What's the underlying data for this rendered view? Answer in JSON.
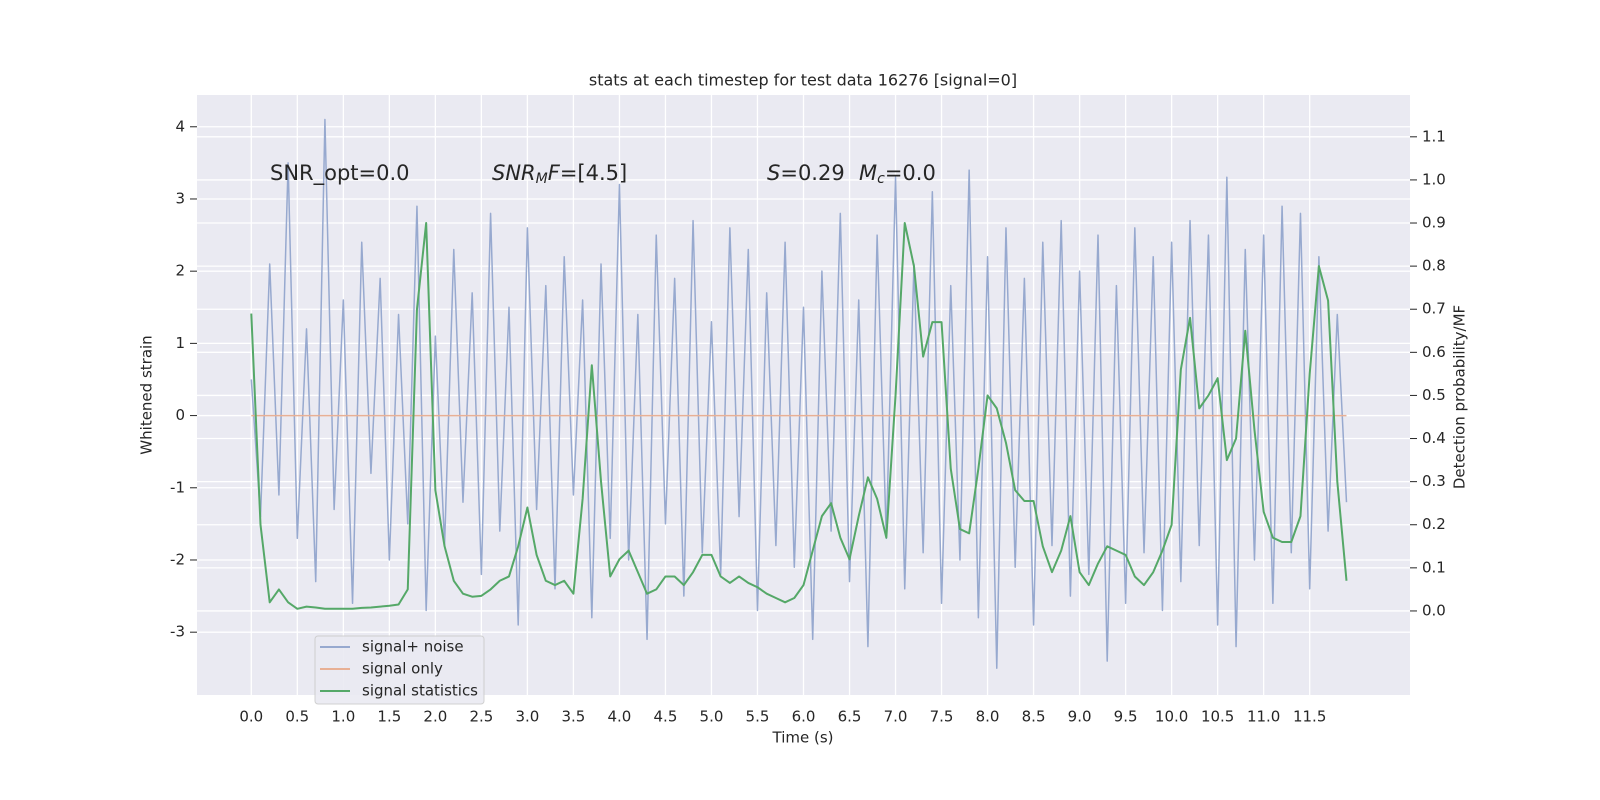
{
  "chart_data": {
    "type": "line",
    "title": "stats at each timestep for test data 16276 [signal=0]",
    "xlabel": "Time (s)",
    "ylabel": "Whitened strain",
    "y2label": "Detection probability/MF",
    "annotations": [
      [
        "SNR_opt=0.0"
      ],
      [
        "SNR",
        "M",
        "F",
        "=[4.5]"
      ],
      [
        "S",
        "=0.29"
      ],
      [
        "M",
        "c",
        "=0.0"
      ]
    ],
    "grid": true,
    "legend": "lower left",
    "xlim": [
      -0.59,
      12.59
    ],
    "ylim": [
      -3.87,
      4.44
    ],
    "y2lim": [
      -0.195,
      1.197
    ],
    "xticks": [
      {
        "value": 0,
        "label": "0.0"
      },
      0.5,
      {
        "value": 1,
        "label": "1.0"
      },
      1.5,
      {
        "value": 2,
        "label": "2.0"
      },
      2.5,
      {
        "value": 3,
        "label": "3.0"
      },
      3.5,
      {
        "value": 4,
        "label": "4.0"
      },
      4.5,
      {
        "value": 5,
        "label": "5.0"
      },
      5.5,
      {
        "value": 6,
        "label": "6.0"
      },
      6.5,
      {
        "value": 7,
        "label": "7.0"
      },
      7.5,
      {
        "value": 8,
        "label": "8.0"
      },
      8.5,
      {
        "value": 9,
        "label": "9.0"
      },
      9.5,
      {
        "value": 10,
        "label": "10.0"
      },
      10.5,
      {
        "value": 11,
        "label": "11.0"
      },
      11.5
    ],
    "yticks": [
      -3,
      -2,
      -1,
      0,
      1,
      2,
      3,
      4
    ],
    "y2ticks": [
      {
        "value": 0,
        "label": "0.0"
      },
      0.1,
      0.2,
      0.3,
      0.4,
      0.5,
      0.6,
      0.7,
      0.8,
      0.9,
      {
        "value": 1,
        "label": "1.0"
      },
      1.1
    ],
    "x": [
      0.0,
      0.1,
      0.2,
      0.3,
      0.4,
      0.5,
      0.6,
      0.7,
      0.8,
      0.9,
      1.0,
      1.1,
      1.2,
      1.3,
      1.4,
      1.5,
      1.6,
      1.7,
      1.8,
      1.9,
      2.0,
      2.1,
      2.2,
      2.3,
      2.4,
      2.5,
      2.6,
      2.7,
      2.8,
      2.9,
      3.0,
      3.1,
      3.2,
      3.3,
      3.4,
      3.5,
      3.6,
      3.7,
      3.8,
      3.9,
      4.0,
      4.1,
      4.2,
      4.3,
      4.4,
      4.5,
      4.6,
      4.7,
      4.8,
      4.9,
      5.0,
      5.1,
      5.2,
      5.3,
      5.4,
      5.5,
      5.6,
      5.7,
      5.8,
      5.9,
      6.0,
      6.1,
      6.2,
      6.3,
      6.4,
      6.5,
      6.6,
      6.7,
      6.8,
      6.9,
      7.0,
      7.1,
      7.2,
      7.3,
      7.4,
      7.5,
      7.6,
      7.7,
      7.8,
      7.9,
      8.0,
      8.1,
      8.2,
      8.3,
      8.4,
      8.5,
      8.6,
      8.7,
      8.8,
      8.9,
      9.0,
      9.1,
      9.2,
      9.3,
      9.4,
      9.5,
      9.6,
      9.7,
      9.8,
      9.9,
      10.0,
      10.1,
      10.2,
      10.3,
      10.4,
      10.5,
      10.6,
      10.7,
      10.8,
      10.9,
      11.0,
      11.1,
      11.2,
      11.3,
      11.4,
      11.5,
      11.6,
      11.7,
      11.8,
      11.9
    ],
    "series": [
      {
        "name": "signal+ noise",
        "color": "#97a9cf",
        "values": [
          0.5,
          -1.4,
          2.1,
          -1.1,
          3.5,
          -1.7,
          1.2,
          -2.3,
          4.1,
          -1.3,
          1.6,
          -2.6,
          2.4,
          -0.8,
          1.9,
          -2.0,
          1.4,
          -1.5,
          2.9,
          -2.7,
          1.1,
          -1.8,
          2.3,
          -1.2,
          1.7,
          -2.2,
          2.8,
          -1.6,
          1.5,
          -2.9,
          2.6,
          -1.3,
          1.8,
          -2.4,
          2.2,
          -1.1,
          1.6,
          -2.8,
          2.1,
          -1.7,
          3.2,
          -2.0,
          1.4,
          -3.1,
          2.5,
          -1.5,
          1.9,
          -2.5,
          2.7,
          -1.9,
          1.3,
          -2.2,
          2.6,
          -1.4,
          2.3,
          -2.7,
          1.7,
          -1.8,
          2.4,
          -2.1,
          1.5,
          -3.1,
          2.0,
          -1.6,
          2.8,
          -2.3,
          1.6,
          -3.2,
          2.5,
          -1.7,
          3.3,
          -2.4,
          2.1,
          -1.9,
          3.1,
          -2.6,
          1.8,
          -2.0,
          3.4,
          -2.8,
          2.2,
          -3.5,
          2.6,
          -2.1,
          1.9,
          -2.9,
          2.4,
          -1.8,
          2.7,
          -2.5,
          2.0,
          -2.2,
          2.5,
          -3.4,
          1.8,
          -2.6,
          2.6,
          -1.9,
          2.2,
          -2.7,
          2.4,
          -2.3,
          2.7,
          -1.8,
          2.5,
          -2.9,
          3.3,
          -3.2,
          2.3,
          -2.0,
          2.5,
          -2.6,
          2.9,
          -1.9,
          2.8,
          -2.4,
          2.2,
          -1.6,
          1.4,
          -1.2
        ]
      },
      {
        "name": "signal only",
        "color": "#e8b095",
        "values": [
          0,
          0,
          0,
          0,
          0,
          0,
          0,
          0,
          0,
          0,
          0,
          0,
          0,
          0,
          0,
          0,
          0,
          0,
          0,
          0,
          0,
          0,
          0,
          0,
          0,
          0,
          0,
          0,
          0,
          0,
          0,
          0,
          0,
          0,
          0,
          0,
          0,
          0,
          0,
          0,
          0,
          0,
          0,
          0,
          0,
          0,
          0,
          0,
          0,
          0,
          0,
          0,
          0,
          0,
          0,
          0,
          0,
          0,
          0,
          0,
          0,
          0,
          0,
          0,
          0,
          0,
          0,
          0,
          0,
          0,
          0,
          0,
          0,
          0,
          0,
          0,
          0,
          0,
          0,
          0,
          0,
          0,
          0,
          0,
          0,
          0,
          0,
          0,
          0,
          0,
          0,
          0,
          0,
          0,
          0,
          0,
          0,
          0,
          0,
          0,
          0,
          0,
          0,
          0,
          0,
          0,
          0,
          0,
          0,
          0,
          0,
          0,
          0,
          0,
          0,
          0,
          0,
          0,
          0,
          0
        ]
      },
      {
        "name": "signal statistics",
        "color": "#55a868",
        "axis": "y2",
        "values": [
          0.69,
          0.2,
          0.02,
          0.05,
          0.02,
          0.005,
          0.01,
          0.008,
          0.005,
          0.005,
          0.005,
          0.005,
          0.007,
          0.008,
          0.01,
          0.012,
          0.015,
          0.05,
          0.7,
          0.9,
          0.28,
          0.15,
          0.07,
          0.04,
          0.033,
          0.035,
          0.05,
          0.07,
          0.08,
          0.15,
          0.24,
          0.13,
          0.07,
          0.06,
          0.07,
          0.04,
          0.26,
          0.57,
          0.3,
          0.08,
          0.12,
          0.14,
          0.09,
          0.04,
          0.05,
          0.08,
          0.08,
          0.06,
          0.09,
          0.13,
          0.13,
          0.08,
          0.065,
          0.08,
          0.065,
          0.055,
          0.04,
          0.03,
          0.02,
          0.03,
          0.06,
          0.14,
          0.22,
          0.25,
          0.17,
          0.12,
          0.22,
          0.31,
          0.26,
          0.17,
          0.5,
          0.9,
          0.8,
          0.59,
          0.67,
          0.67,
          0.33,
          0.19,
          0.18,
          0.33,
          0.5,
          0.47,
          0.39,
          0.28,
          0.255,
          0.255,
          0.15,
          0.09,
          0.14,
          0.22,
          0.09,
          0.06,
          0.11,
          0.15,
          0.14,
          0.13,
          0.08,
          0.06,
          0.09,
          0.14,
          0.2,
          0.56,
          0.68,
          0.47,
          0.5,
          0.54,
          0.35,
          0.4,
          0.65,
          0.42,
          0.23,
          0.17,
          0.16,
          0.16,
          0.22,
          0.55,
          0.8,
          0.72,
          0.3,
          0.07
        ]
      }
    ]
  }
}
